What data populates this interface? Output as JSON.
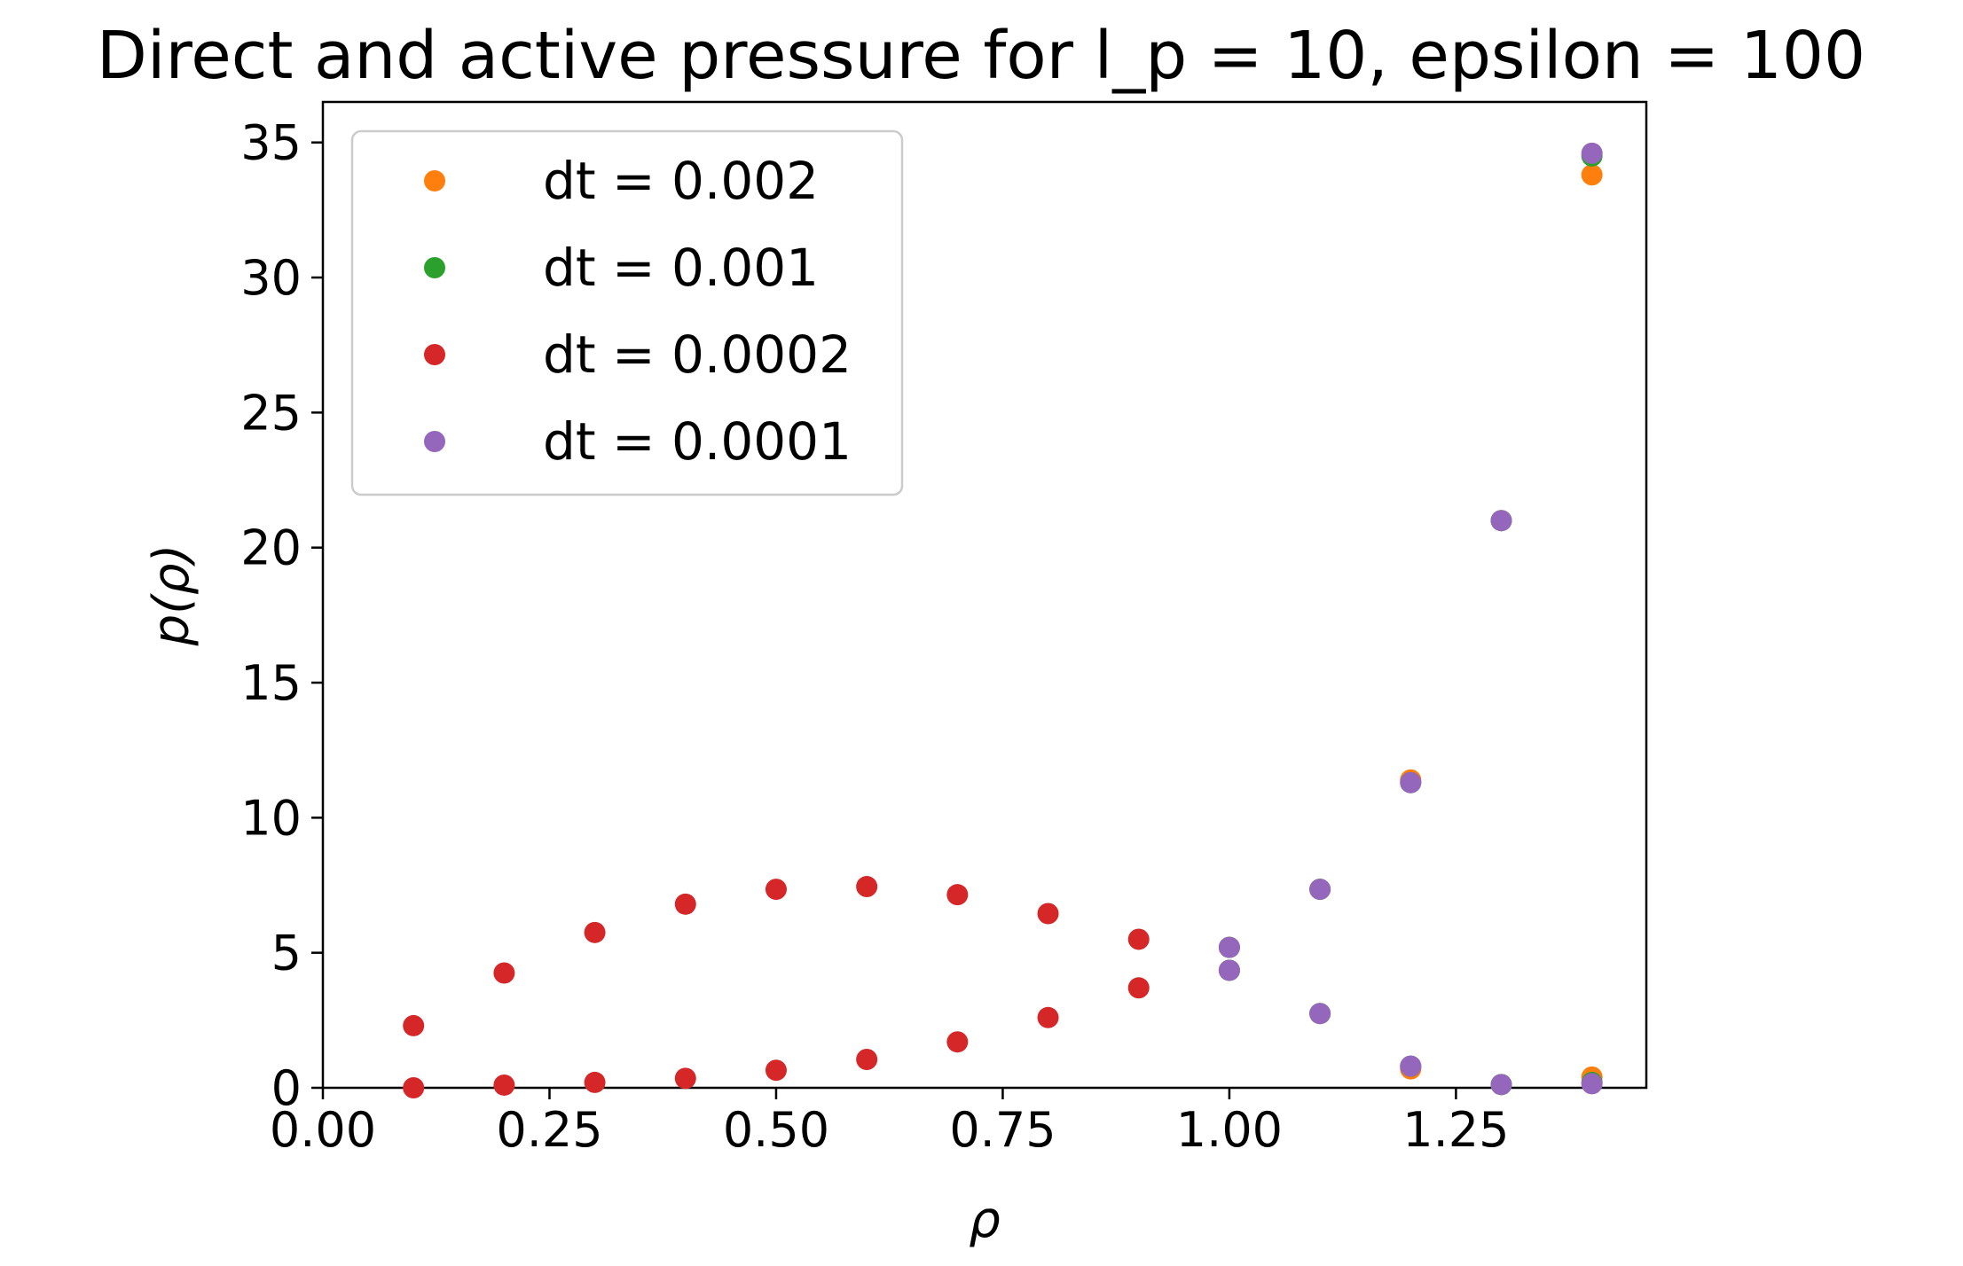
{
  "chart_data": {
    "type": "scatter",
    "title": "Direct and active pressure for l_p = 10, epsilon = 100",
    "xlabel": "ρ",
    "ylabel": "p(ρ)",
    "xlim": [
      0.0,
      1.46
    ],
    "ylim": [
      0,
      36.5
    ],
    "x_ticks": [
      0.0,
      0.25,
      0.5,
      0.75,
      1.0,
      1.25
    ],
    "x_tick_labels": [
      "0.00",
      "0.25",
      "0.50",
      "0.75",
      "1.00",
      "1.25"
    ],
    "y_ticks": [
      0,
      5,
      10,
      15,
      20,
      25,
      30,
      35
    ],
    "y_tick_labels": [
      "0",
      "5",
      "10",
      "15",
      "20",
      "25",
      "30",
      "35"
    ],
    "grid": false,
    "legend_position": "top-left",
    "series": [
      {
        "name": "dt = 0.002",
        "legend_label": "dt = 0.002",
        "color": "#ff7f0e",
        "x": [
          1.0,
          1.0,
          1.1,
          1.1,
          1.2,
          1.2,
          1.3,
          1.3,
          1.4,
          1.4
        ],
        "y": [
          5.2,
          4.35,
          7.35,
          2.75,
          11.4,
          0.7,
          21.0,
          0.12,
          33.8,
          0.4
        ]
      },
      {
        "name": "dt = 0.001",
        "legend_label": "dt = 0.001",
        "color": "#2ca02c",
        "x": [
          1.0,
          1.0,
          1.1,
          1.1,
          1.2,
          1.2,
          1.3,
          1.3,
          1.4,
          1.4
        ],
        "y": [
          5.2,
          4.35,
          7.35,
          2.75,
          11.3,
          0.8,
          21.0,
          0.12,
          34.5,
          0.2
        ]
      },
      {
        "name": "dt = 0.0002",
        "legend_label": "dt = 0.0002",
        "color": "#d62728",
        "x": [
          0.1,
          0.2,
          0.3,
          0.4,
          0.5,
          0.6,
          0.7,
          0.8,
          0.9,
          0.1,
          0.2,
          0.3,
          0.4,
          0.5,
          0.6,
          0.7,
          0.8,
          0.9
        ],
        "y": [
          2.3,
          4.25,
          5.75,
          6.8,
          7.35,
          7.45,
          7.15,
          6.45,
          5.5,
          0.0,
          0.1,
          0.2,
          0.35,
          0.65,
          1.05,
          1.7,
          2.6,
          3.7
        ]
      },
      {
        "name": "dt = 0.0001",
        "legend_label": "dt = 0.0001",
        "color": "#9467bd",
        "x": [
          1.0,
          1.0,
          1.1,
          1.1,
          1.2,
          1.2,
          1.3,
          1.3,
          1.4,
          1.4
        ],
        "y": [
          5.2,
          4.35,
          7.35,
          2.75,
          11.3,
          0.8,
          21.0,
          0.12,
          34.6,
          0.15
        ]
      }
    ]
  }
}
